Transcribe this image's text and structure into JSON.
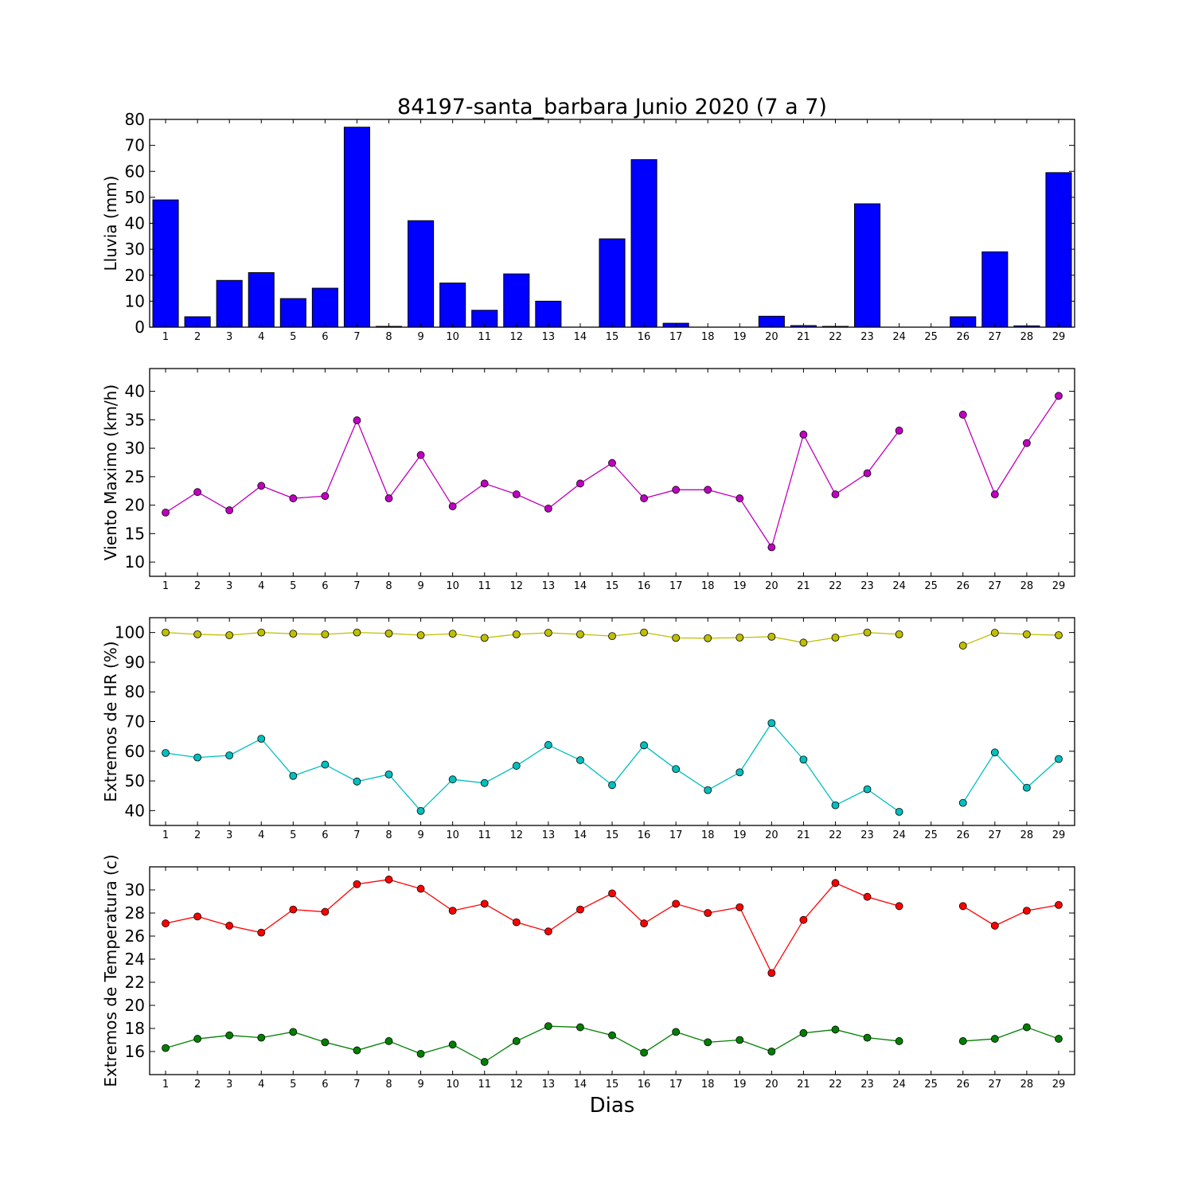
{
  "chart_data": {
    "title": "84197-santa_barbara Junio 2020  (7 a 7)",
    "xlabel": "Dias",
    "days": [
      1,
      2,
      3,
      4,
      5,
      6,
      7,
      8,
      9,
      10,
      11,
      12,
      13,
      14,
      15,
      16,
      17,
      18,
      19,
      20,
      21,
      22,
      23,
      24,
      25,
      26,
      27,
      28,
      29
    ],
    "panels": [
      {
        "type": "bar",
        "ylabel": "Lluvia (mm)",
        "ylim": [
          0,
          80
        ],
        "yticks": [
          0,
          10,
          20,
          30,
          40,
          50,
          60,
          70,
          80
        ],
        "series": [
          {
            "color": "#0000ff",
            "values": [
              49,
              4,
              18,
              21,
              11,
              15,
              77,
              0.3,
              41,
              17,
              6.5,
              20.5,
              10,
              0,
              34,
              64.5,
              1.5,
              0,
              0,
              4.2,
              0.6,
              0.3,
              47.5,
              0,
              0,
              4,
              29,
              0.5,
              59.5
            ]
          }
        ]
      },
      {
        "type": "line",
        "ylabel": "Viento Maximo (km/h)",
        "ylim": [
          7.5,
          44
        ],
        "yticks": [
          10,
          15,
          20,
          25,
          30,
          35,
          40
        ],
        "series": [
          {
            "color": "#bf00bf",
            "values": [
              18.7,
              22.3,
              19.1,
              23.4,
              21.2,
              21.6,
              34.9,
              21.2,
              28.8,
              19.8,
              23.8,
              21.9,
              19.4,
              23.8,
              27.4,
              21.2,
              22.7,
              22.7,
              21.2,
              12.6,
              32.4,
              21.9,
              25.6,
              33.1,
              null,
              35.9,
              21.9,
              30.9,
              39.2
            ]
          }
        ]
      },
      {
        "type": "line",
        "ylabel": "Extremos de HR (%)",
        "ylim": [
          35,
          105
        ],
        "yticks": [
          40,
          50,
          60,
          70,
          80,
          90,
          100
        ],
        "series": [
          {
            "color": "#bfbf00",
            "values": [
              100,
              99.4,
              99.1,
              100,
              99.6,
              99.4,
              100,
              99.7,
              99.1,
              99.6,
              98.2,
              99.4,
              99.9,
              99.4,
              98.8,
              100,
              98.2,
              98.1,
              98.3,
              98.6,
              96.6,
              98.3,
              100,
              99.4,
              null,
              95.6,
              99.9,
              99.4,
              99.1
            ]
          },
          {
            "color": "#00bfbf",
            "values": [
              59.4,
              57.9,
              58.6,
              64.2,
              51.7,
              55.5,
              49.8,
              52.2,
              39.9,
              50.5,
              49.3,
              55.1,
              62.1,
              57.0,
              48.6,
              62.0,
              54.0,
              46.9,
              52.9,
              69.5,
              57.2,
              41.8,
              47.2,
              39.6,
              null,
              42.6,
              59.6,
              47.7,
              57.4
            ]
          }
        ]
      },
      {
        "type": "line",
        "ylabel": "Extremos de Temperatura (c)",
        "ylim": [
          14,
          32
        ],
        "yticks": [
          16,
          18,
          20,
          22,
          24,
          26,
          28,
          30
        ],
        "series": [
          {
            "color": "#ff0000",
            "values": [
              27.1,
              27.7,
              26.9,
              26.3,
              28.3,
              28.1,
              30.5,
              30.9,
              30.1,
              28.2,
              28.8,
              27.2,
              26.4,
              28.3,
              29.7,
              27.1,
              28.8,
              28.0,
              28.5,
              22.8,
              27.4,
              30.6,
              29.4,
              28.6,
              null,
              28.6,
              26.9,
              28.2,
              28.7
            ]
          },
          {
            "color": "#007f00",
            "values": [
              16.3,
              17.1,
              17.4,
              17.2,
              17.7,
              16.8,
              16.1,
              16.9,
              15.8,
              16.6,
              15.1,
              16.9,
              18.2,
              18.1,
              17.4,
              15.9,
              17.7,
              16.8,
              17.0,
              16.0,
              17.6,
              17.9,
              17.2,
              16.9,
              null,
              16.9,
              17.1,
              18.1,
              17.1
            ]
          }
        ]
      }
    ]
  }
}
